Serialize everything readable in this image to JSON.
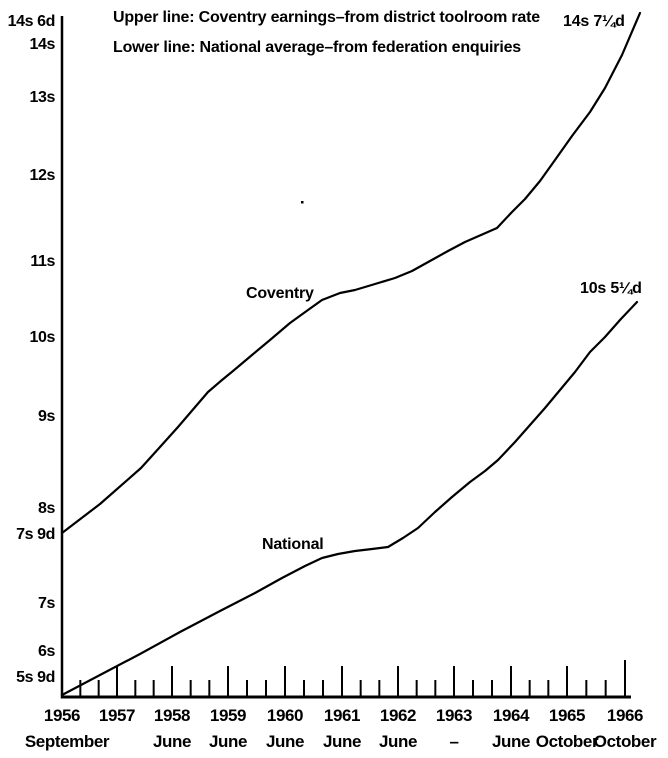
{
  "page": {
    "background": "#ffffff",
    "ink_color": "#000000"
  },
  "legend": {
    "upper": "Upper line: Coventry earnings–from district toolroom rate",
    "lower": "Lower line: National average–from federation enquiries"
  },
  "annotations": {
    "coventry_line_label": "Coventry",
    "national_line_label": "National",
    "coventry_end_value": "14s 7¼d",
    "national_end_value": "10s 5¼d"
  },
  "chart_data": {
    "type": "line",
    "title": "",
    "legend_position": "top",
    "grid": false,
    "x_axis": {
      "categories": [
        {
          "year": "1956",
          "month": "September"
        },
        {
          "year": "1957",
          "month": ""
        },
        {
          "year": "1958",
          "month": "June"
        },
        {
          "year": "1959",
          "month": "June"
        },
        {
          "year": "1960",
          "month": "June"
        },
        {
          "year": "1961",
          "month": "June"
        },
        {
          "year": "1962",
          "month": "June"
        },
        {
          "year": "1963",
          "month": "–"
        },
        {
          "year": "1964",
          "month": "June"
        },
        {
          "year": "1965",
          "month": "October"
        },
        {
          "year": "1966",
          "month": "October"
        }
      ],
      "minor_ticks_between_years": 2
    },
    "y_axis": {
      "tick_labels": [
        "14s 6d",
        "14s",
        "13s",
        "12s",
        "11s",
        "10s",
        "9s",
        "8s",
        "7s 9d",
        "7s",
        "6s",
        "5s 9d"
      ],
      "unit": "shillings and pence"
    },
    "series": [
      {
        "name": "Coventry",
        "source": "district toolroom rate",
        "start_value": "7s 9d",
        "end_value": "14s 7¼d",
        "approx_values": [
          "7s 9d",
          "8s 3d",
          "8s 10d",
          "9s 7d",
          "10s 1d",
          "10s 7d",
          "10s 10d",
          "11s 2d",
          "11s 7d",
          "12s 6d",
          "14s 7¼d"
        ],
        "approx_values_shillings": [
          7.75,
          8.25,
          8.83,
          9.58,
          10.08,
          10.58,
          10.83,
          11.17,
          11.58,
          12.5,
          14.6
        ]
      },
      {
        "name": "National",
        "source": "federation enquiries",
        "start_value": "5s 9d",
        "end_value": "10s 5¼d",
        "approx_values": [
          "5s 9d",
          "5s 11d",
          "6s 4d",
          "6s 11d",
          "7s 3d",
          "7s 6d",
          "7s 8d",
          "8s 2d",
          "8s 8d",
          "9s 5d",
          "10s 5¼d"
        ],
        "approx_values_shillings": [
          5.75,
          5.92,
          6.33,
          6.92,
          7.25,
          7.5,
          7.67,
          8.17,
          8.67,
          9.42,
          10.44
        ]
      }
    ]
  }
}
